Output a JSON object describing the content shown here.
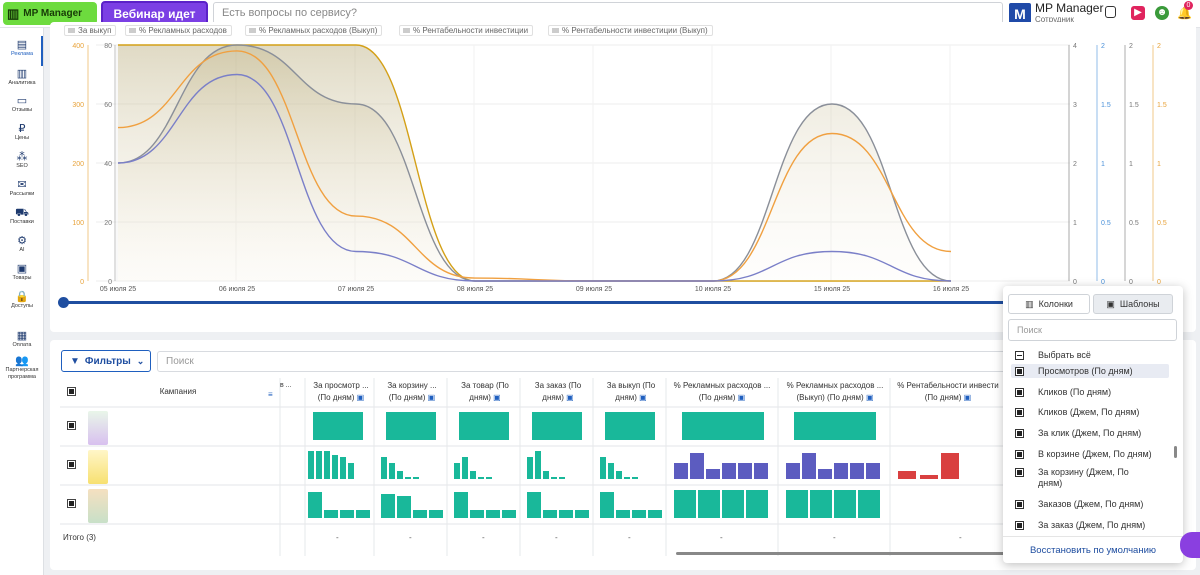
{
  "topbar": {
    "logo_label": "MP Manager",
    "webinar_label": "Вебинар идет",
    "search_placeholder": "Есть вопросы по сервису?",
    "user_initial": "M",
    "user_name": "MP Manager",
    "user_role": "Сотрудник",
    "notification_count": "0"
  },
  "sidebar": {
    "items": [
      {
        "label": "Реклама",
        "icon": "ads-icon"
      },
      {
        "label": "Аналитика",
        "icon": "analytics-icon"
      },
      {
        "label": "Отзывы",
        "icon": "reviews-icon"
      },
      {
        "label": "Цены",
        "icon": "prices-icon"
      },
      {
        "label": "SEO",
        "icon": "seo-icon"
      },
      {
        "label": "Рассылки",
        "icon": "mailing-icon"
      },
      {
        "label": "Поставки",
        "icon": "delivery-icon"
      },
      {
        "label": "AI",
        "icon": "ai-icon"
      },
      {
        "label": "Товары",
        "icon": "products-icon"
      },
      {
        "label": "Доступы",
        "icon": "access-icon"
      },
      {
        "label": "Оплата",
        "icon": "payment-icon"
      },
      {
        "label": "Партнерская программа",
        "icon": "partner-icon"
      }
    ]
  },
  "legend": [
    "За выкуп",
    "% Рекламных расходов",
    "% Рекламных расходов (Выкуп)",
    "% Рентабельности инвестиции",
    "% Рентабельности инвестиции (Выкуп)"
  ],
  "chart_data": {
    "type": "area",
    "x": [
      "05 июля 25",
      "06 июля 25",
      "07 июля 25",
      "08 июля 25",
      "09 июля 25",
      "10 июля 25",
      "15 июля 25",
      "16 июля 25"
    ],
    "left_axis_1": [
      0,
      100,
      200,
      300,
      400
    ],
    "left_axis_2": [
      0,
      20,
      40,
      60,
      80
    ],
    "right_axis_1": [
      0,
      1,
      2,
      3,
      4
    ],
    "right_axis_2": [
      0,
      0.5,
      1,
      1.5,
      2
    ],
    "right_axis_3": [
      0,
      0.5,
      1,
      1.5,
      2
    ],
    "right_axis_4": [
      0,
      0.5,
      1,
      1.5,
      2
    ],
    "series": [
      {
        "color": "#d4a017",
        "values": [
          80,
          80,
          80,
          0,
          0,
          0,
          0,
          0
        ]
      },
      {
        "color": "#8a8f99",
        "values": [
          40,
          80,
          60,
          0,
          0,
          0,
          60,
          0
        ]
      },
      {
        "color": "#f0a040",
        "values": [
          52,
          78,
          22,
          1,
          0,
          0,
          50,
          10
        ]
      },
      {
        "color": "#7a7fc8",
        "values": [
          40,
          70,
          10,
          0,
          0,
          0,
          10,
          0
        ]
      }
    ]
  },
  "table": {
    "filters_label": "Фильтры",
    "search_placeholder": "Поиск",
    "campaign_header": "Кампания",
    "columns": [
      {
        "l1": "За просмотр",
        "l2": "(По дням)"
      },
      {
        "l1": "За корзину",
        "l2": "(По дням)"
      },
      {
        "l1": "За товар (По",
        "l2": "дням)"
      },
      {
        "l1": "За заказ (По",
        "l2": "дням)"
      },
      {
        "l1": "За выкуп (По",
        "l2": "дням)"
      },
      {
        "l1": "% Рекламных расходов",
        "l2": "(По дням)"
      },
      {
        "l1": "% Рекламных расходов",
        "l2": "(Выкуп) (По дням)"
      },
      {
        "l1": "% Рентабельности инвести",
        "l2": "(По дням)"
      }
    ],
    "total_label": "Итого (3)",
    "total_value": "-"
  },
  "dropdown": {
    "tab_columns": "Колонки",
    "tab_templates": "Шаблоны",
    "search_placeholder": "Поиск",
    "items": [
      "Выбрать всё",
      "Просмотров (По дням)",
      "Кликов (По дням)",
      "Кликов (Джем, По дням)",
      "За клик (Джем, По дням)",
      "В корзине (Джем, По дням)",
      "За корзину (Джем, По дням)",
      "Заказов (Джем, По дням)",
      "За заказ (Джем, По дням)"
    ],
    "footer": "Восстановить по умолчанию"
  },
  "colors": {
    "accent": "#1f4ea0",
    "teal_bar": "#19b89a",
    "purple_bar": "#5c5cc0",
    "red_bar": "#d94040",
    "logo_green": "#6ddb3e",
    "webinar_purple": "#7b3fe4"
  }
}
